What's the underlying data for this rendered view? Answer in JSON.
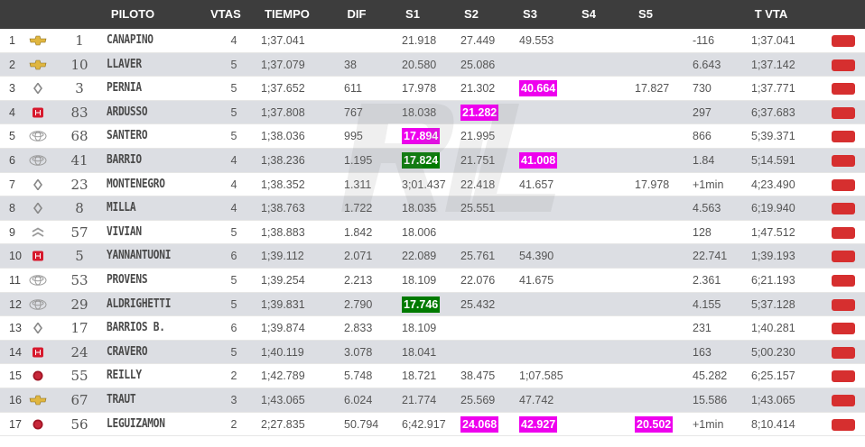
{
  "header": {
    "piloto": "PILOTO",
    "vtas": "VTAS",
    "tiempo": "TIEMPO",
    "dif": "DIF",
    "s1": "S1",
    "s2": "S2",
    "s3": "S3",
    "s4": "S4",
    "s5": "S5",
    "tvta": "T VTA"
  },
  "colors": {
    "header_bg": "#3d3d3d",
    "row_alt": "#dcdee3",
    "best_sector_purple": "#ee00ee",
    "best_sector_green": "#007a00",
    "action_button": "#d62f2f"
  },
  "rows": [
    {
      "pos": "1",
      "brand": "chevrolet-icon",
      "num": "1",
      "name": "CANAPINO",
      "vtas": "4",
      "tiempo": "1;37.041",
      "dif": "",
      "s1": "21.918",
      "s2": "27.449",
      "s3": "49.553",
      "s4": "",
      "s5": "",
      "gap": "-116",
      "tvta": "1;37.041",
      "hl": {}
    },
    {
      "pos": "2",
      "brand": "chevrolet-icon",
      "num": "10",
      "name": "LLAVER",
      "vtas": "5",
      "tiempo": "1;37.079",
      "dif": "38",
      "s1": "20.580",
      "s2": "25.086",
      "s3": "",
      "s4": "",
      "s5": "",
      "gap": "6.643",
      "tvta": "1;37.142",
      "hl": {}
    },
    {
      "pos": "3",
      "brand": "renault-icon",
      "num": "3",
      "name": "PERNIA",
      "vtas": "5",
      "tiempo": "1;37.652",
      "dif": "611",
      "s1": "17.978",
      "s2": "21.302",
      "s3": "40.664",
      "s4": "",
      "s5": "17.827",
      "gap": "730",
      "tvta": "1;37.771",
      "hl": {
        "s3": "purple"
      }
    },
    {
      "pos": "4",
      "brand": "honda-icon",
      "num": "83",
      "name": "ARDUSSO",
      "vtas": "5",
      "tiempo": "1;37.808",
      "dif": "767",
      "s1": "18.038",
      "s2": "21.282",
      "s3": "",
      "s4": "",
      "s5": "",
      "gap": "297",
      "tvta": "6;37.683",
      "hl": {
        "s2": "purple"
      }
    },
    {
      "pos": "5",
      "brand": "toyota-icon",
      "num": "68",
      "name": "SANTERO",
      "vtas": "5",
      "tiempo": "1;38.036",
      "dif": "995",
      "s1": "17.894",
      "s2": "21.995",
      "s3": "",
      "s4": "",
      "s5": "",
      "gap": "866",
      "tvta": "5;39.371",
      "hl": {
        "s1": "purple"
      }
    },
    {
      "pos": "6",
      "brand": "toyota-icon",
      "num": "41",
      "name": "BARRIO",
      "vtas": "4",
      "tiempo": "1;38.236",
      "dif": "1.195",
      "s1": "17.824",
      "s2": "21.751",
      "s3": "41.008",
      "s4": "",
      "s5": "",
      "gap": "1.84",
      "tvta": "5;14.591",
      "hl": {
        "s1": "green",
        "s3": "purple"
      }
    },
    {
      "pos": "7",
      "brand": "renault-icon",
      "num": "23",
      "name": "MONTENEGRO",
      "vtas": "4",
      "tiempo": "1;38.352",
      "dif": "1.311",
      "s1": "3;01.437",
      "s2": "22.418",
      "s3": "41.657",
      "s4": "",
      "s5": "17.978",
      "gap": "+1min",
      "tvta": "4;23.490",
      "hl": {}
    },
    {
      "pos": "8",
      "brand": "renault-icon",
      "num": "8",
      "name": "MILLA",
      "vtas": "4",
      "tiempo": "1;38.763",
      "dif": "1.722",
      "s1": "18.035",
      "s2": "25.551",
      "s3": "",
      "s4": "",
      "s5": "",
      "gap": "4.563",
      "tvta": "6;19.940",
      "hl": {}
    },
    {
      "pos": "9",
      "brand": "citroen-icon",
      "num": "57",
      "name": "VIVIAN",
      "vtas": "5",
      "tiempo": "1;38.883",
      "dif": "1.842",
      "s1": "18.006",
      "s2": "",
      "s3": "",
      "s4": "",
      "s5": "",
      "gap": "128",
      "tvta": "1;47.512",
      "hl": {}
    },
    {
      "pos": "10",
      "brand": "honda-icon",
      "num": "5",
      "name": "YANNANTUONI",
      "vtas": "6",
      "tiempo": "1;39.112",
      "dif": "2.071",
      "s1": "22.089",
      "s2": "25.761",
      "s3": "54.390",
      "s4": "",
      "s5": "",
      "gap": "22.741",
      "tvta": "1;39.193",
      "hl": {}
    },
    {
      "pos": "11",
      "brand": "toyota-icon",
      "num": "53",
      "name": "PROVENS",
      "vtas": "5",
      "tiempo": "1;39.254",
      "dif": "2.213",
      "s1": "18.109",
      "s2": "22.076",
      "s3": "41.675",
      "s4": "",
      "s5": "",
      "gap": "2.361",
      "tvta": "6;21.193",
      "hl": {}
    },
    {
      "pos": "12",
      "brand": "toyota-icon",
      "num": "29",
      "name": "ALDRIGHETTI",
      "vtas": "5",
      "tiempo": "1;39.831",
      "dif": "2.790",
      "s1": "17.746",
      "s2": "25.432",
      "s3": "",
      "s4": "",
      "s5": "",
      "gap": "4.155",
      "tvta": "5;37.128",
      "hl": {
        "s1": "green"
      }
    },
    {
      "pos": "13",
      "brand": "renault-icon",
      "num": "17",
      "name": "BARRIOS B.",
      "vtas": "6",
      "tiempo": "1;39.874",
      "dif": "2.833",
      "s1": "18.109",
      "s2": "",
      "s3": "",
      "s4": "",
      "s5": "",
      "gap": "231",
      "tvta": "1;40.281",
      "hl": {}
    },
    {
      "pos": "14",
      "brand": "honda-icon",
      "num": "24",
      "name": "CRAVERO",
      "vtas": "5",
      "tiempo": "1;40.119",
      "dif": "3.078",
      "s1": "18.041",
      "s2": "",
      "s3": "",
      "s4": "",
      "s5": "",
      "gap": "163",
      "tvta": "5;00.230",
      "hl": {}
    },
    {
      "pos": "15",
      "brand": "fiat-icon",
      "num": "55",
      "name": "REILLY",
      "vtas": "2",
      "tiempo": "1;42.789",
      "dif": "5.748",
      "s1": "18.721",
      "s2": "38.475",
      "s3": "1;07.585",
      "s4": "",
      "s5": "",
      "gap": "45.282",
      "tvta": "6;25.157",
      "hl": {}
    },
    {
      "pos": "16",
      "brand": "chevrolet-icon",
      "num": "67",
      "name": "TRAUT",
      "vtas": "3",
      "tiempo": "1;43.065",
      "dif": "6.024",
      "s1": "21.774",
      "s2": "25.569",
      "s3": "47.742",
      "s4": "",
      "s5": "",
      "gap": "15.586",
      "tvta": "1;43.065",
      "hl": {}
    },
    {
      "pos": "17",
      "brand": "fiat-icon",
      "num": "56",
      "name": "LEGUIZAMON",
      "vtas": "2",
      "tiempo": "2;27.835",
      "dif": "50.794",
      "s1": "6;42.917",
      "s2": "24.068",
      "s3": "42.927",
      "s4": "",
      "s5": "20.502",
      "gap": "+1min",
      "tvta": "8;10.414",
      "hl": {
        "s2": "purple",
        "s3": "purple",
        "s5": "purple"
      }
    }
  ]
}
